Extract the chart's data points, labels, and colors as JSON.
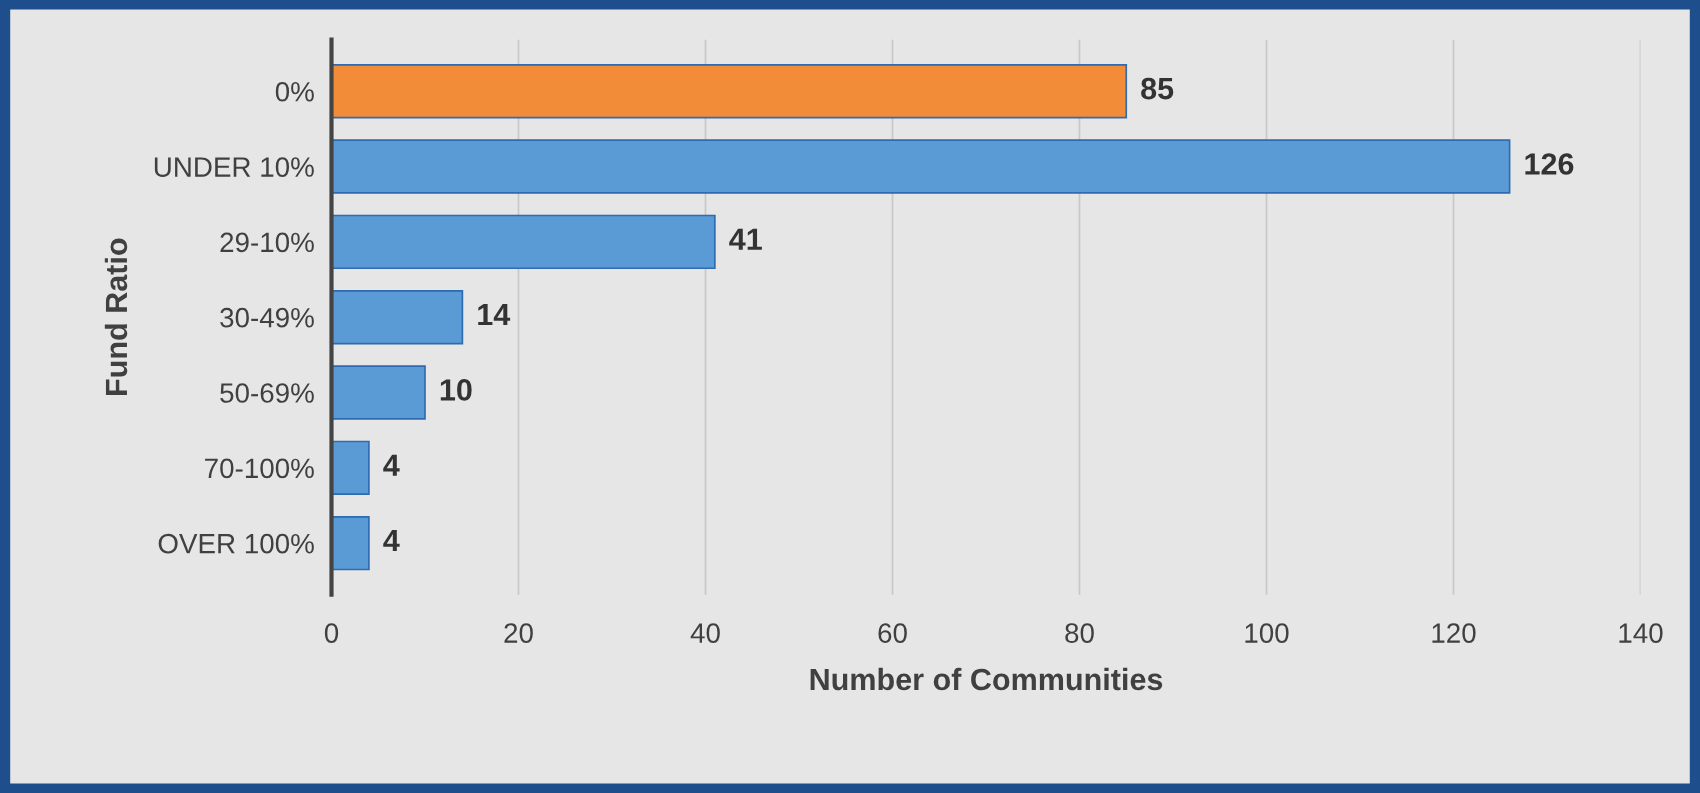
{
  "chart_data": {
    "type": "bar",
    "orientation": "horizontal",
    "categories": [
      "0%",
      "UNDER 10%",
      "29-10%",
      "30-49%",
      "50-69%",
      "70-100%",
      "OVER 100%"
    ],
    "values": [
      85,
      126,
      41,
      14,
      10,
      4,
      4
    ],
    "colors": [
      "#f28c38",
      "#5b9bd5",
      "#5b9bd5",
      "#5b9bd5",
      "#5b9bd5",
      "#5b9bd5",
      "#5b9bd5"
    ],
    "xlabel": "Number of Communities",
    "ylabel": "Fund Ratio",
    "xlim": [
      0,
      140
    ],
    "xticks": [
      0,
      20,
      40,
      60,
      80,
      100,
      120,
      140
    ],
    "grid": "x",
    "data_labels": true
  }
}
